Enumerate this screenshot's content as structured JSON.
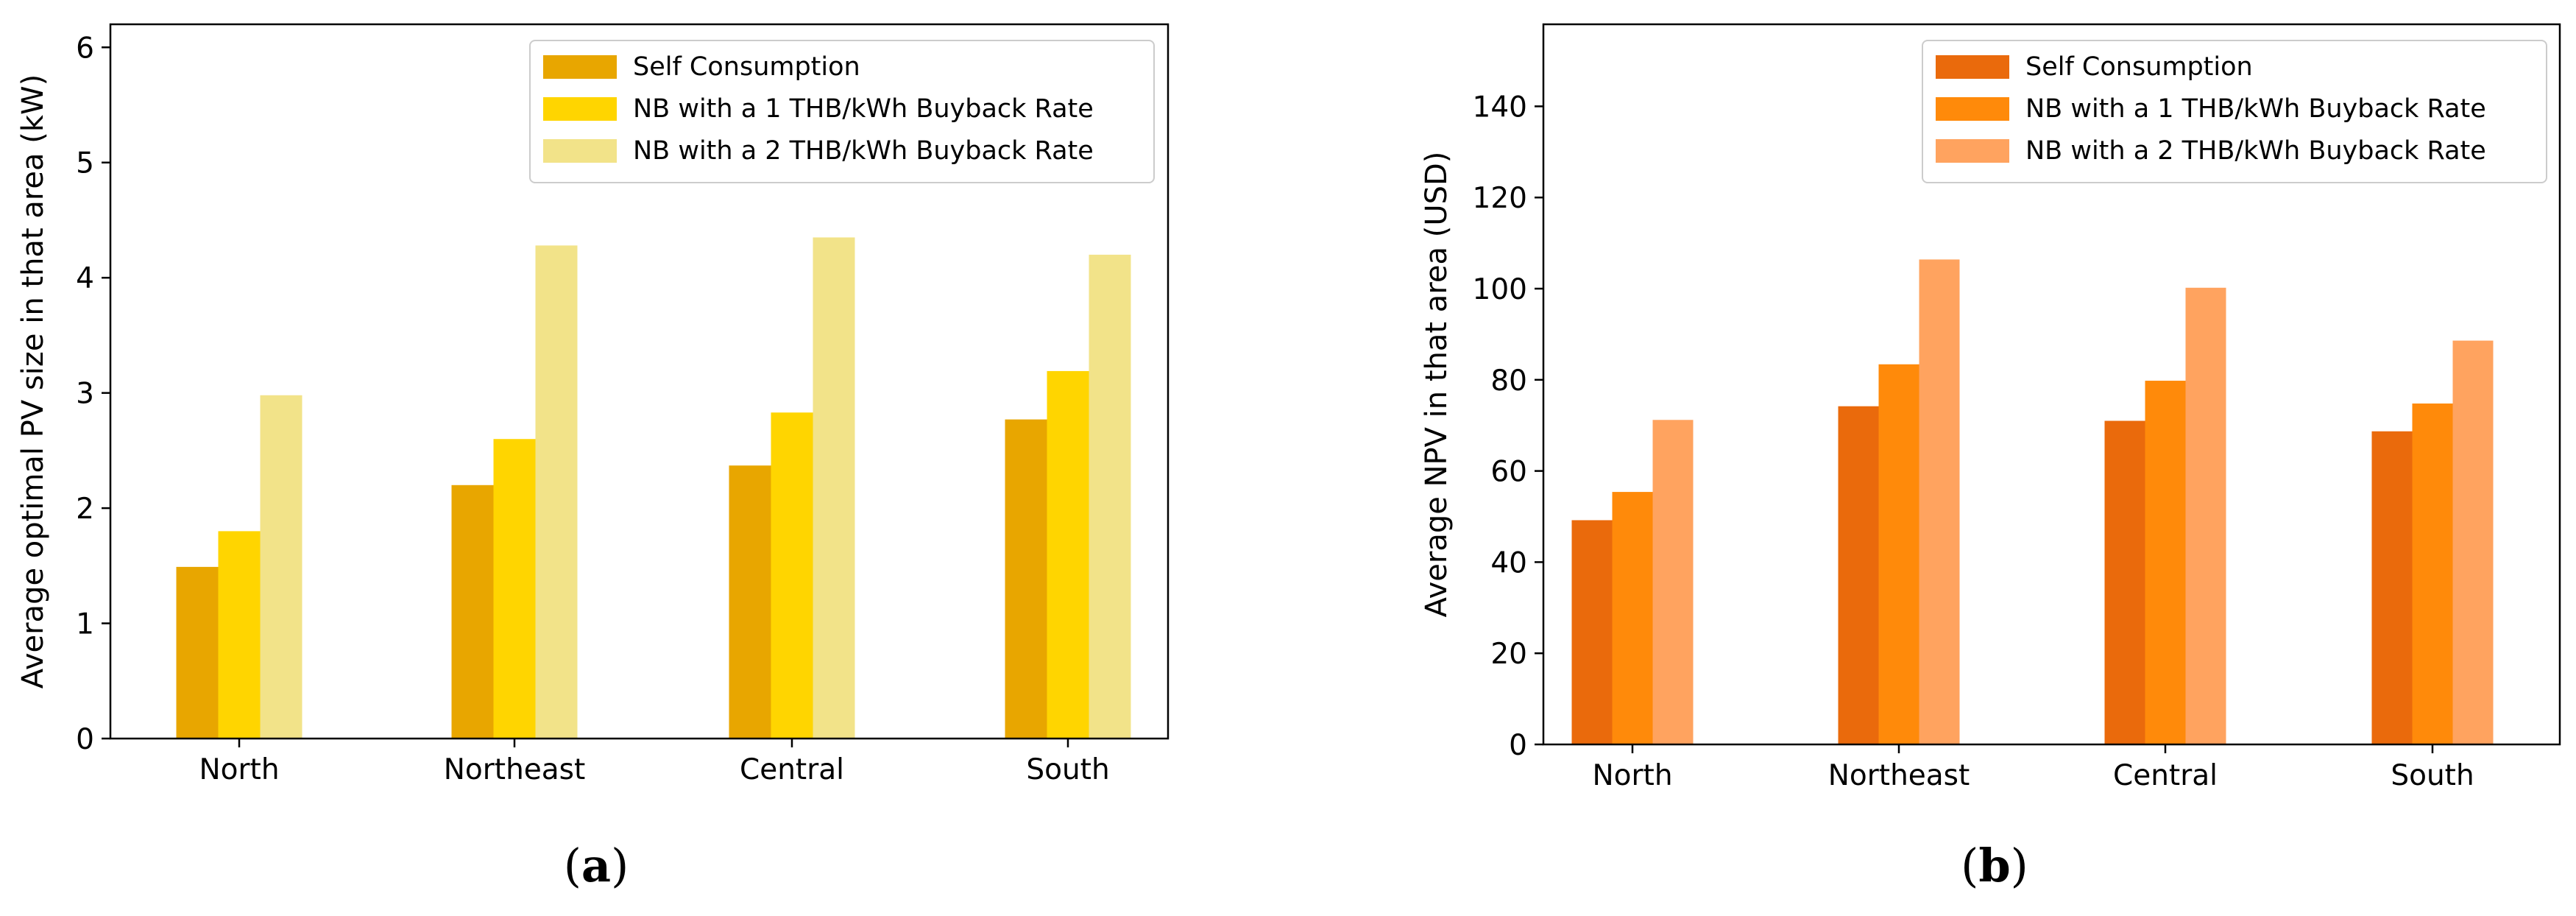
{
  "panels": [
    {
      "id": "a",
      "caption_open": "(",
      "caption_letter": "a",
      "caption_close": ")"
    },
    {
      "id": "b",
      "caption_open": "(",
      "caption_letter": "b",
      "caption_close": ")"
    }
  ],
  "chart_data": [
    {
      "type": "bar",
      "title": "",
      "xlabel": "",
      "ylabel": "Average optimal PV size in that area (kW)",
      "ylim": [
        0,
        6.2
      ],
      "yticks": [
        0,
        1,
        2,
        3,
        4,
        5,
        6
      ],
      "grid": false,
      "legend_position": "top-right",
      "categories": [
        "North",
        "Northeast",
        "Central",
        "South"
      ],
      "series": [
        {
          "name": "Self Consumption",
          "color": "#E8A600",
          "values": [
            1.49,
            2.2,
            2.37,
            2.77
          ]
        },
        {
          "name": "NB with a 1 THB/kWh Buyback Rate",
          "color": "#FFD500",
          "values": [
            1.8,
            2.6,
            2.83,
            3.19
          ]
        },
        {
          "name": "NB with a 2 THB/kWh Buyback Rate",
          "color": "#F2E389",
          "values": [
            2.98,
            4.28,
            4.35,
            4.2
          ]
        }
      ]
    },
    {
      "type": "bar",
      "title": "",
      "xlabel": "",
      "ylabel": "Average NPV in that area (USD)",
      "ylim": [
        0,
        158
      ],
      "yticks": [
        0,
        20,
        40,
        60,
        80,
        100,
        120,
        140
      ],
      "grid": false,
      "legend_position": "top-right",
      "categories": [
        "North",
        "Northeast",
        "Central",
        "South"
      ],
      "series": [
        {
          "name": "Self Consumption",
          "color": "#EA6A0C",
          "values": [
            49.2,
            74.2,
            71.0,
            68.7
          ]
        },
        {
          "name": "NB with a 1 THB/kWh Buyback Rate",
          "color": "#FF8A0A",
          "values": [
            55.4,
            83.4,
            79.8,
            74.8
          ]
        },
        {
          "name": "NB with a 2 THB/kWh Buyback Rate",
          "color": "#FFA35F",
          "values": [
            71.2,
            106.4,
            100.2,
            88.6
          ]
        }
      ]
    }
  ]
}
